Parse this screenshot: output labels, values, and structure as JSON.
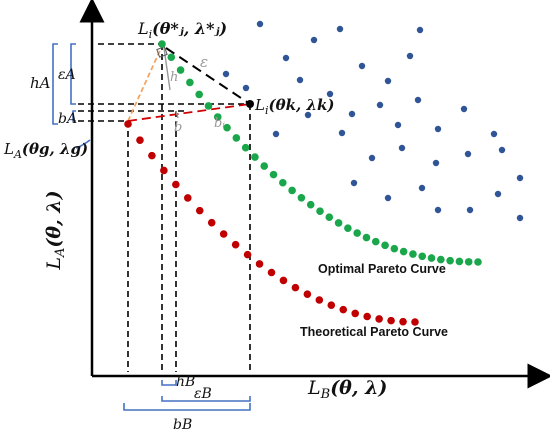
{
  "axes": {
    "y_label_main": "L",
    "y_label_sub": "A",
    "y_label_args": "(θ, λ)",
    "x_label_main": "L",
    "x_label_sub": "B",
    "x_label_args": "(θ, λ)"
  },
  "points": {
    "star_main": "L",
    "star_sub": "i",
    "star_args": "(θ*ⱼ, λ*ⱼ)",
    "k_main": "L",
    "k_sub": "i",
    "k_args": "(θk, λk)",
    "g_main": "L",
    "g_sub": "A",
    "g_args": "(θg, λg)"
  },
  "annotations": {
    "epsilon": "ε",
    "h": "h",
    "b": "b",
    "b_i": "bᵢ"
  },
  "brackets": {
    "h_A": "hA",
    "eps_A": "εA",
    "b_A": "bA",
    "h_B": "hB",
    "eps_B": "εB",
    "b_B": "bB"
  },
  "curves": {
    "optimal_label": "Optimal Pareto Curve",
    "theoretical_label": "Theoretical Pareto Curve",
    "optimal_color": "#1aa64a",
    "theoretical_color": "#c00000",
    "scatter_color": "#2f5597",
    "bracket_color": "#4472c4",
    "orange_color": "#f4a460"
  }
}
